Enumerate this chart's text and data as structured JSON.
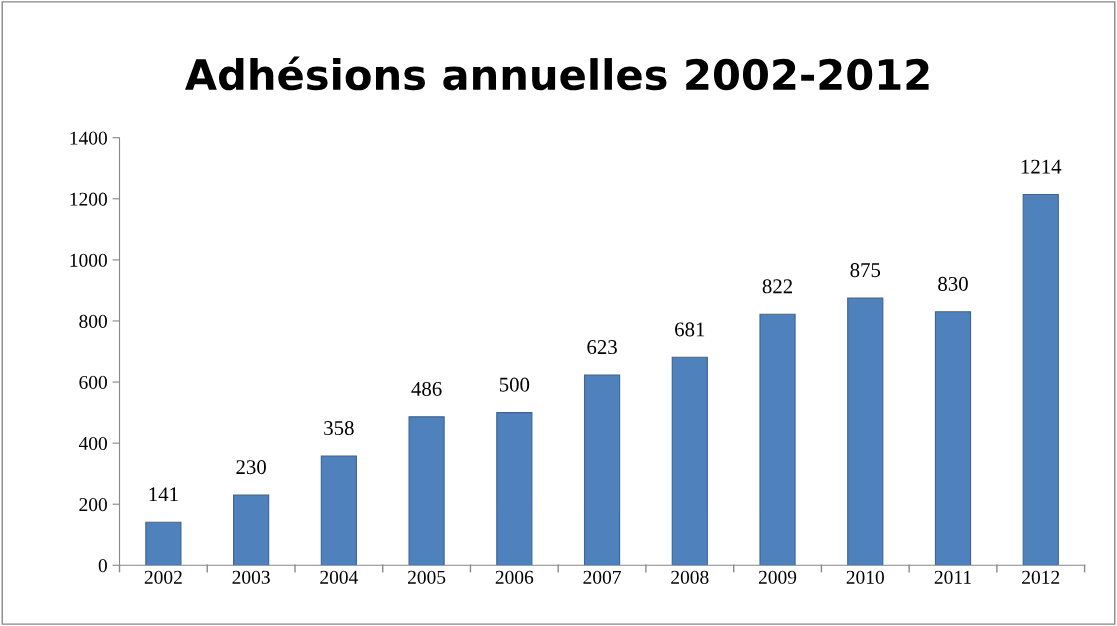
{
  "chart_data": {
    "type": "bar",
    "title": "Adhésions annuelles 2002-2012",
    "categories": [
      "2002",
      "2003",
      "2004",
      "2005",
      "2006",
      "2007",
      "2008",
      "2009",
      "2010",
      "2011",
      "2012"
    ],
    "values": [
      141,
      230,
      358,
      486,
      500,
      623,
      681,
      822,
      875,
      830,
      1214
    ],
    "color": "#4f81bd",
    "ylim": [
      0,
      1400
    ],
    "yticks": [
      0,
      200,
      400,
      600,
      800,
      1000,
      1200,
      1400
    ],
    "data_labels": true,
    "grid": false,
    "legend": false
  }
}
